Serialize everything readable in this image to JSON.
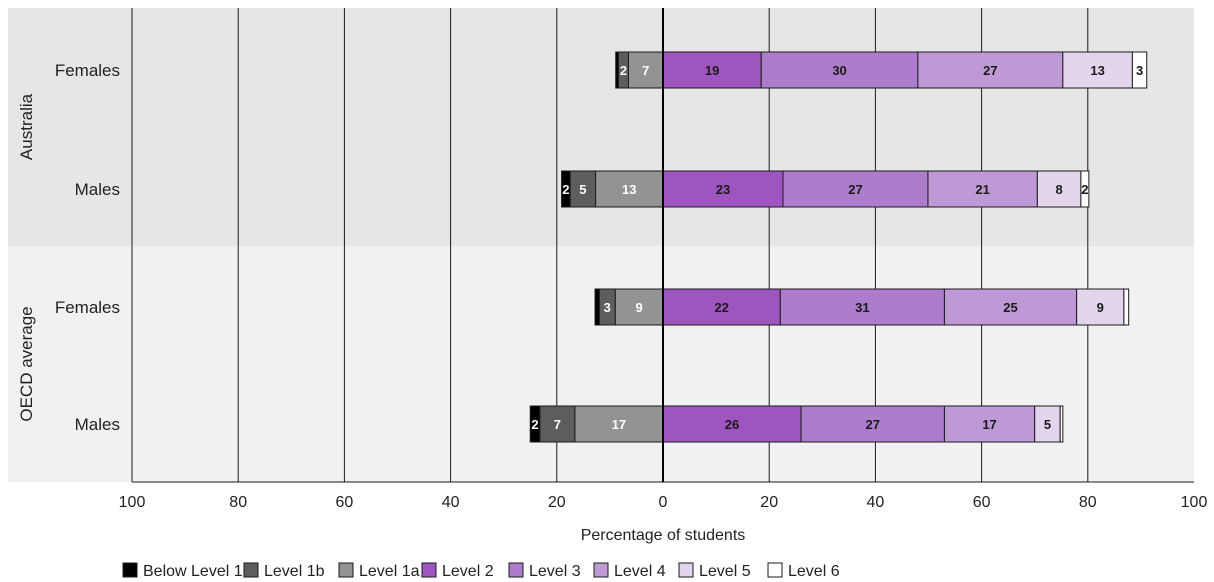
{
  "chart_data": {
    "type": "bar",
    "orientation": "horizontal",
    "stacked": "diverging",
    "xlabel": "Percentage of students",
    "xlim": [
      -100,
      100
    ],
    "x_ticks": [
      -100,
      -80,
      -60,
      -40,
      -20,
      0,
      20,
      40,
      60,
      80,
      100
    ],
    "x_tick_labels": [
      "100",
      "80",
      "60",
      "40",
      "20",
      "0",
      "20",
      "40",
      "60",
      "80",
      "100"
    ],
    "groups": [
      {
        "name": "Australia",
        "background": "#e6e6e7"
      },
      {
        "name": "OECD average",
        "background": "#f1f1f1"
      }
    ],
    "categories": [
      {
        "group": "Australia",
        "label": "Females"
      },
      {
        "group": "Australia",
        "label": "Males"
      },
      {
        "group": "OECD average",
        "label": "Females"
      },
      {
        "group": "OECD average",
        "label": "Males"
      }
    ],
    "series": [
      {
        "name": "Below Level 1b",
        "side": "negative",
        "color": "#000000",
        "label_color": "#ffffff",
        "values": [
          0.5,
          1.6,
          0.8,
          1.8
        ],
        "labels": [
          "",
          "2",
          "",
          "2"
        ]
      },
      {
        "name": "Level 1b",
        "side": "negative",
        "color": "#5d5d5f",
        "label_color": "#ffffff",
        "values": [
          1.9,
          4.8,
          3.0,
          6.6
        ],
        "labels": [
          "2",
          "5",
          "3",
          "7"
        ]
      },
      {
        "name": "Level 1a",
        "side": "negative",
        "color": "#939396",
        "label_color": "#ffffff",
        "values": [
          6.5,
          12.7,
          9.0,
          16.6
        ],
        "labels": [
          "7",
          "13",
          "9",
          "17"
        ]
      },
      {
        "name": "Level 2",
        "side": "positive",
        "color": "#9e55bf",
        "label_color": "#1a1a1a",
        "values": [
          18.5,
          22.6,
          22.1,
          26.0
        ],
        "labels": [
          "19",
          "23",
          "22",
          "26"
        ]
      },
      {
        "name": "Level 3",
        "side": "positive",
        "color": "#ad7ccc",
        "label_color": "#1a1a1a",
        "values": [
          29.5,
          27.3,
          30.9,
          27.0
        ],
        "labels": [
          "30",
          "27",
          "31",
          "27"
        ]
      },
      {
        "name": "Level 4",
        "side": "positive",
        "color": "#bf99d6",
        "label_color": "#1a1a1a",
        "values": [
          27.3,
          20.6,
          24.9,
          17.0
        ],
        "labels": [
          "27",
          "21",
          "25",
          "17"
        ]
      },
      {
        "name": "Level 5",
        "side": "positive",
        "color": "#e3d5ee",
        "label_color": "#1a1a1a",
        "values": [
          13.1,
          8.2,
          8.9,
          4.8
        ],
        "labels": [
          "13",
          "8",
          "9",
          "5"
        ]
      },
      {
        "name": "Level 6",
        "side": "positive",
        "color": "#ffffff",
        "label_color": "#1a1a1a",
        "values": [
          2.7,
          1.5,
          0.9,
          0.5
        ],
        "labels": [
          "3",
          "2",
          "",
          ""
        ]
      }
    ],
    "grid": true,
    "legend_position": "bottom"
  }
}
